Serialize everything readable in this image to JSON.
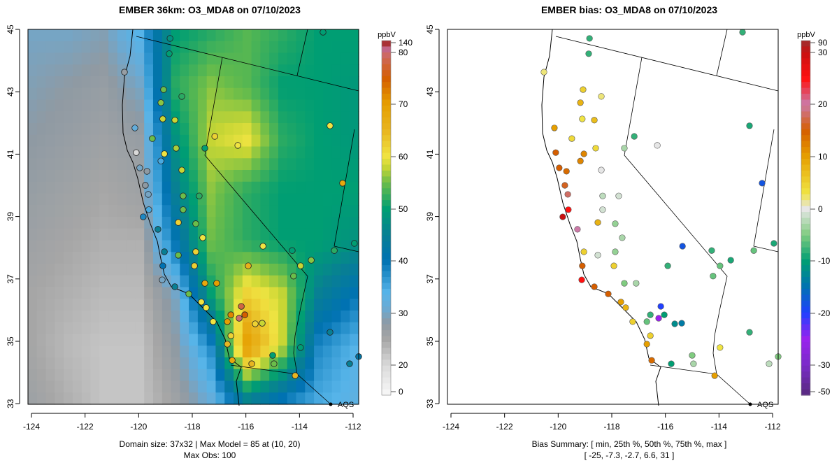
{
  "left": {
    "title": "EMBER 36km: O3_MDA8 on 07/10/2023",
    "caption_line1": "Domain size: 37x32 | Max Model = 85 at (10, 20)",
    "caption_line2": "Max Obs: 100",
    "legend_unit": "ppbV",
    "colorbar_ticks": [
      "140",
      "80",
      "70",
      "60",
      "50",
      "40",
      "30",
      "20",
      "0"
    ],
    "colorbar_tick_values": [
      140,
      80,
      70,
      60,
      50,
      40,
      30,
      20,
      0
    ],
    "aqs_label": "AQS"
  },
  "right": {
    "title": "EMBER bias: O3_MDA8 on 07/10/2023",
    "caption_line1": "Bias Summary: [ min, 25th %, 50th %, 75th %, max ]",
    "caption_line2": "[ -25,  -7.3,  -2.7,  6.6,  31 ]",
    "legend_unit": "ppbV",
    "colorbar_ticks": [
      "90",
      "30",
      "20",
      "10",
      "0",
      "-10",
      "-20",
      "-30",
      "-50"
    ],
    "colorbar_tick_values": [
      90,
      30,
      20,
      10,
      0,
      -10,
      -20,
      -30,
      -50
    ],
    "aqs_label": "AQS"
  },
  "axes": {
    "x_ticks": [
      "-124",
      "-122",
      "-120",
      "-118",
      "-116",
      "-114",
      "-112"
    ],
    "y_ticks": [
      "45",
      "43",
      "41",
      "39",
      "37",
      "35",
      "33"
    ]
  },
  "model_grid_coarse": [
    [
      30,
      30,
      29,
      34,
      50,
      52,
      54,
      52,
      50,
      50
    ],
    [
      29,
      28,
      27,
      30,
      52,
      56,
      54,
      50,
      50,
      49
    ],
    [
      28,
      27,
      26,
      27,
      48,
      58,
      60,
      52,
      50,
      49
    ],
    [
      27,
      26,
      25,
      26,
      45,
      56,
      52,
      50,
      50,
      50
    ],
    [
      26,
      25,
      24,
      24,
      40,
      55,
      52,
      50,
      50,
      48
    ],
    [
      25,
      24,
      23,
      23,
      30,
      50,
      62,
      58,
      45,
      40
    ],
    [
      25,
      23,
      22,
      22,
      28,
      38,
      70,
      58,
      38,
      34
    ],
    [
      26,
      24,
      22,
      22,
      26,
      32,
      46,
      40,
      35,
      33
    ]
  ],
  "stations": [
    [
      -118.83,
      44.71,
      48,
      -8
    ],
    [
      -118.86,
      44.22,
      50,
      -8
    ],
    [
      -113.12,
      44.91,
      50,
      -8
    ],
    [
      -120.53,
      43.63,
      27,
      2
    ],
    [
      -119.07,
      43.07,
      55,
      5
    ],
    [
      -119.17,
      42.65,
      56,
      8
    ],
    [
      -118.39,
      42.85,
      52,
      2
    ],
    [
      -119.1,
      42.13,
      58,
      3
    ],
    [
      -118.65,
      42.09,
      58,
      7
    ],
    [
      -120.14,
      41.84,
      32,
      10
    ],
    [
      -119.49,
      41.5,
      55,
      4
    ],
    [
      -118.6,
      41.19,
      57,
      4
    ],
    [
      -119.04,
      41.01,
      60,
      12
    ],
    [
      -117.53,
      41.19,
      50,
      -3
    ],
    [
      -117.16,
      41.57,
      62,
      -8
    ],
    [
      -116.3,
      41.28,
      60,
      0
    ],
    [
      -119.96,
      40.56,
      30,
      15
    ],
    [
      -119.69,
      40.45,
      28,
      14
    ],
    [
      -119.17,
      40.78,
      35,
      12
    ],
    [
      -120.09,
      41.05,
      20,
      15
    ],
    [
      -119.75,
      40.0,
      28,
      16
    ],
    [
      -119.64,
      39.71,
      30,
      18
    ],
    [
      -119.62,
      39.22,
      35,
      25
    ],
    [
      -119.83,
      38.99,
      38,
      30
    ],
    [
      -119.28,
      38.59,
      45,
      20
    ],
    [
      -118.39,
      40.49,
      58,
      0
    ],
    [
      -118.34,
      39.66,
      55,
      -2
    ],
    [
      -117.74,
      39.66,
      52,
      -1
    ],
    [
      -118.34,
      39.22,
      55,
      -1
    ],
    [
      -117.87,
      38.77,
      55,
      -4
    ],
    [
      -118.52,
      38.81,
      62,
      8
    ],
    [
      -117.61,
      38.32,
      60,
      -3
    ],
    [
      -119.04,
      37.87,
      45,
      5
    ],
    [
      -118.52,
      37.76,
      55,
      -1
    ],
    [
      -117.87,
      37.87,
      62,
      -4
    ],
    [
      -119.1,
      37.42,
      40,
      15
    ],
    [
      -119.12,
      36.97,
      30,
      25
    ],
    [
      -118.65,
      36.75,
      45,
      15
    ],
    [
      -118.13,
      36.52,
      55,
      15
    ],
    [
      -117.66,
      36.26,
      60,
      10
    ],
    [
      -117.92,
      37.42,
      62,
      5
    ],
    [
      -117.53,
      36.86,
      68,
      -5
    ],
    [
      -117.09,
      36.86,
      70,
      -3
    ],
    [
      -115.91,
      37.42,
      66,
      -8
    ],
    [
      -115.36,
      38.05,
      60,
      -18
    ],
    [
      -114.27,
      37.91,
      50,
      -8
    ],
    [
      -113.96,
      37.42,
      58,
      -6
    ],
    [
      -113.56,
      37.6,
      56,
      -9
    ],
    [
      -114.22,
      37.09,
      55,
      -6
    ],
    [
      -112.7,
      37.91,
      52,
      -6
    ],
    [
      -112.39,
      40.07,
      68,
      -18
    ],
    [
      -112.86,
      41.91,
      60,
      -9
    ],
    [
      -111.95,
      38.14,
      50,
      -9
    ],
    [
      -116.17,
      36.12,
      78,
      -20
    ],
    [
      -116.25,
      35.74,
      80,
      -25
    ],
    [
      -116.04,
      35.85,
      75,
      -10
    ],
    [
      -116.56,
      35.85,
      72,
      -8
    ],
    [
      -116.69,
      35.63,
      70,
      -6
    ],
    [
      -115.65,
      35.56,
      62,
      -12
    ],
    [
      -115.39,
      35.58,
      58,
      -14
    ],
    [
      -117.22,
      35.63,
      60,
      5
    ],
    [
      -116.56,
      35.18,
      62,
      5
    ],
    [
      -116.69,
      34.91,
      65,
      10
    ],
    [
      -116.51,
      34.39,
      68,
      14
    ],
    [
      -115.78,
      34.28,
      65,
      -10
    ],
    [
      -115.0,
      34.55,
      50,
      -5
    ],
    [
      -114.95,
      34.28,
      55,
      -3
    ],
    [
      -114.16,
      33.9,
      65,
      10
    ],
    [
      -113.96,
      34.8,
      50,
      3
    ],
    [
      -112.86,
      35.29,
      45,
      -8
    ],
    [
      -112.13,
      34.28,
      45,
      -2
    ],
    [
      -111.79,
      34.51,
      42,
      -5
    ],
    [
      -117.48,
      36.08,
      60,
      8
    ]
  ],
  "colors": {
    "axis": "#000000",
    "ocean_low": "#f5f5f5"
  }
}
